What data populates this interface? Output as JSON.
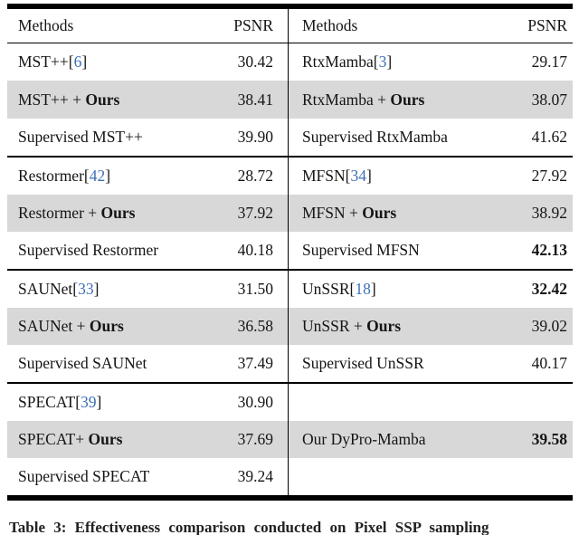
{
  "colors": {
    "highlight_row": "#d8d8d8",
    "citation_blue": "#3d6fb8",
    "rule_black": "#000000",
    "text": "#151515"
  },
  "table": {
    "left_header": {
      "methods": "Methods",
      "psnr": "PSNR"
    },
    "right_header": {
      "methods": "Methods",
      "psnr": "PSNR"
    },
    "groups": [
      {
        "rows": [
          {
            "left": {
              "label": "MST++",
              "cite": "6",
              "bold": "",
              "value": "30.42",
              "highlight": false,
              "value_bold": false
            },
            "right": {
              "label": "RtxMamba",
              "cite": "3",
              "bold": "",
              "value": "29.17",
              "highlight": false,
              "value_bold": false
            }
          },
          {
            "left": {
              "label": "MST++ + ",
              "cite": "",
              "bold": "Ours",
              "value": "38.41",
              "highlight": true,
              "value_bold": false
            },
            "right": {
              "label": "RtxMamba + ",
              "cite": "",
              "bold": "Ours",
              "value": "38.07",
              "highlight": true,
              "value_bold": false
            }
          },
          {
            "left": {
              "label": "Supervised MST++",
              "cite": "",
              "bold": "",
              "value": "39.90",
              "highlight": false,
              "value_bold": false
            },
            "right": {
              "label": "Supervised RtxMamba",
              "cite": "",
              "bold": "",
              "value": "41.62",
              "highlight": false,
              "value_bold": false
            }
          }
        ]
      },
      {
        "rows": [
          {
            "left": {
              "label": "Restormer",
              "cite": "42",
              "bold": "",
              "value": "28.72",
              "highlight": false,
              "value_bold": false
            },
            "right": {
              "label": "MFSN",
              "cite": "34",
              "bold": "",
              "value": "27.92",
              "highlight": false,
              "value_bold": false
            }
          },
          {
            "left": {
              "label": "Restormer + ",
              "cite": "",
              "bold": "Ours",
              "value": "37.92",
              "highlight": true,
              "value_bold": false
            },
            "right": {
              "label": "MFSN + ",
              "cite": "",
              "bold": "Ours",
              "value": "38.92",
              "highlight": true,
              "value_bold": false
            }
          },
          {
            "left": {
              "label": "Supervised Restormer",
              "cite": "",
              "bold": "",
              "value": "40.18",
              "highlight": false,
              "value_bold": false
            },
            "right": {
              "label": "Supervised MFSN",
              "cite": "",
              "bold": "",
              "value": "42.13",
              "highlight": false,
              "value_bold": true
            }
          }
        ]
      },
      {
        "rows": [
          {
            "left": {
              "label": "SAUNet",
              "cite": "33",
              "bold": "",
              "value": "31.50",
              "highlight": false,
              "value_bold": false
            },
            "right": {
              "label": "UnSSR",
              "cite": "18",
              "bold": "",
              "value": "32.42",
              "highlight": false,
              "value_bold": true
            }
          },
          {
            "left": {
              "label": "SAUNet + ",
              "cite": "",
              "bold": "Ours",
              "value": "36.58",
              "highlight": true,
              "value_bold": false
            },
            "right": {
              "label": "UnSSR + ",
              "cite": "",
              "bold": "Ours",
              "value": "39.02",
              "highlight": true,
              "value_bold": false
            }
          },
          {
            "left": {
              "label": "Supervised SAUNet",
              "cite": "",
              "bold": "",
              "value": "37.49",
              "highlight": false,
              "value_bold": false
            },
            "right": {
              "label": "Supervised UnSSR",
              "cite": "",
              "bold": "",
              "value": "40.17",
              "highlight": false,
              "value_bold": false
            }
          }
        ]
      },
      {
        "rows": [
          {
            "left": {
              "label": "SPECAT",
              "cite": "39",
              "bold": "",
              "value": "30.90",
              "highlight": false,
              "value_bold": false
            },
            "right": {
              "label": "",
              "cite": "",
              "bold": "",
              "value": "",
              "highlight": false,
              "value_bold": false
            }
          },
          {
            "left": {
              "label": "SPECAT+ ",
              "cite": "",
              "bold": "Ours",
              "value": "37.69",
              "highlight": true,
              "value_bold": false
            },
            "right": {
              "label": "Our DyPro-Mamba",
              "cite": "",
              "bold": "",
              "value": "39.58",
              "highlight": true,
              "value_bold": true
            }
          },
          {
            "left": {
              "label": "Supervised SPECAT",
              "cite": "",
              "bold": "",
              "value": "39.24",
              "highlight": false,
              "value_bold": false
            },
            "right": {
              "label": "",
              "cite": "",
              "bold": "",
              "value": "",
              "highlight": false,
              "value_bold": false
            }
          }
        ]
      }
    ]
  },
  "caption": {
    "visible_text": "Table 3:  Effectiveness comparison conducted on Pixel SSP sampling"
  }
}
